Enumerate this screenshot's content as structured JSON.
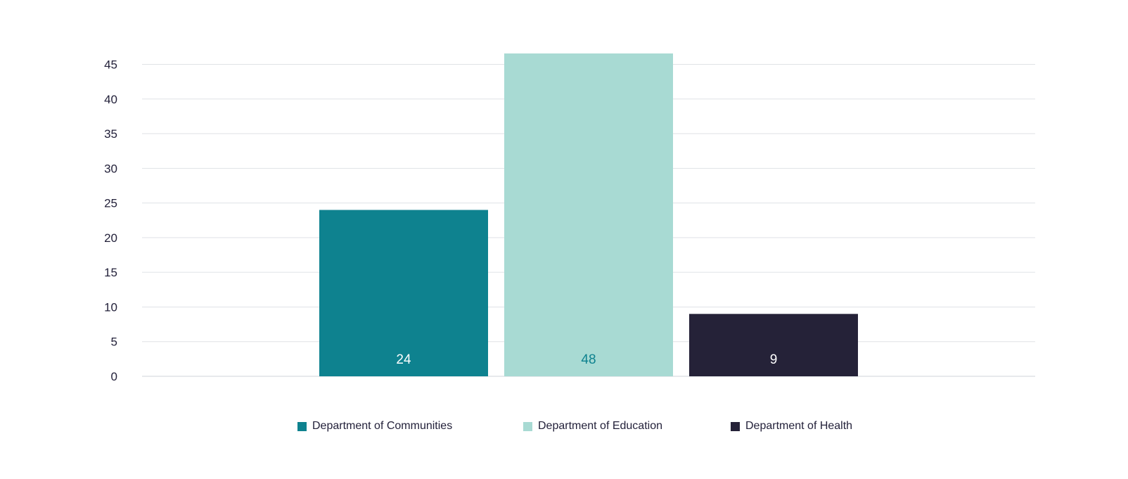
{
  "chart_data": {
    "type": "bar",
    "categories": [
      "Department of Communities",
      "Department of Education",
      "Department of Health"
    ],
    "values": [
      24,
      48,
      9
    ],
    "data_labels": [
      "24",
      "48",
      "9"
    ],
    "colors": [
      "#0e828f",
      "#a8dad3",
      "#252238"
    ],
    "label_colors": [
      "#ffffff",
      "#0e828f",
      "#ffffff"
    ],
    "ylim": [
      0,
      45
    ],
    "yticks": [
      "0",
      "5",
      "10",
      "15",
      "20",
      "25",
      "30",
      "35",
      "40",
      "45"
    ],
    "grid": true,
    "legend_position": "bottom",
    "title": "",
    "xlabel": "",
    "ylabel": ""
  },
  "legend": [
    {
      "label": "Department of Communities",
      "color": "#0e828f"
    },
    {
      "label": "Department of Education",
      "color": "#a8dad3"
    },
    {
      "label": "Department of Health",
      "color": "#252238"
    }
  ]
}
